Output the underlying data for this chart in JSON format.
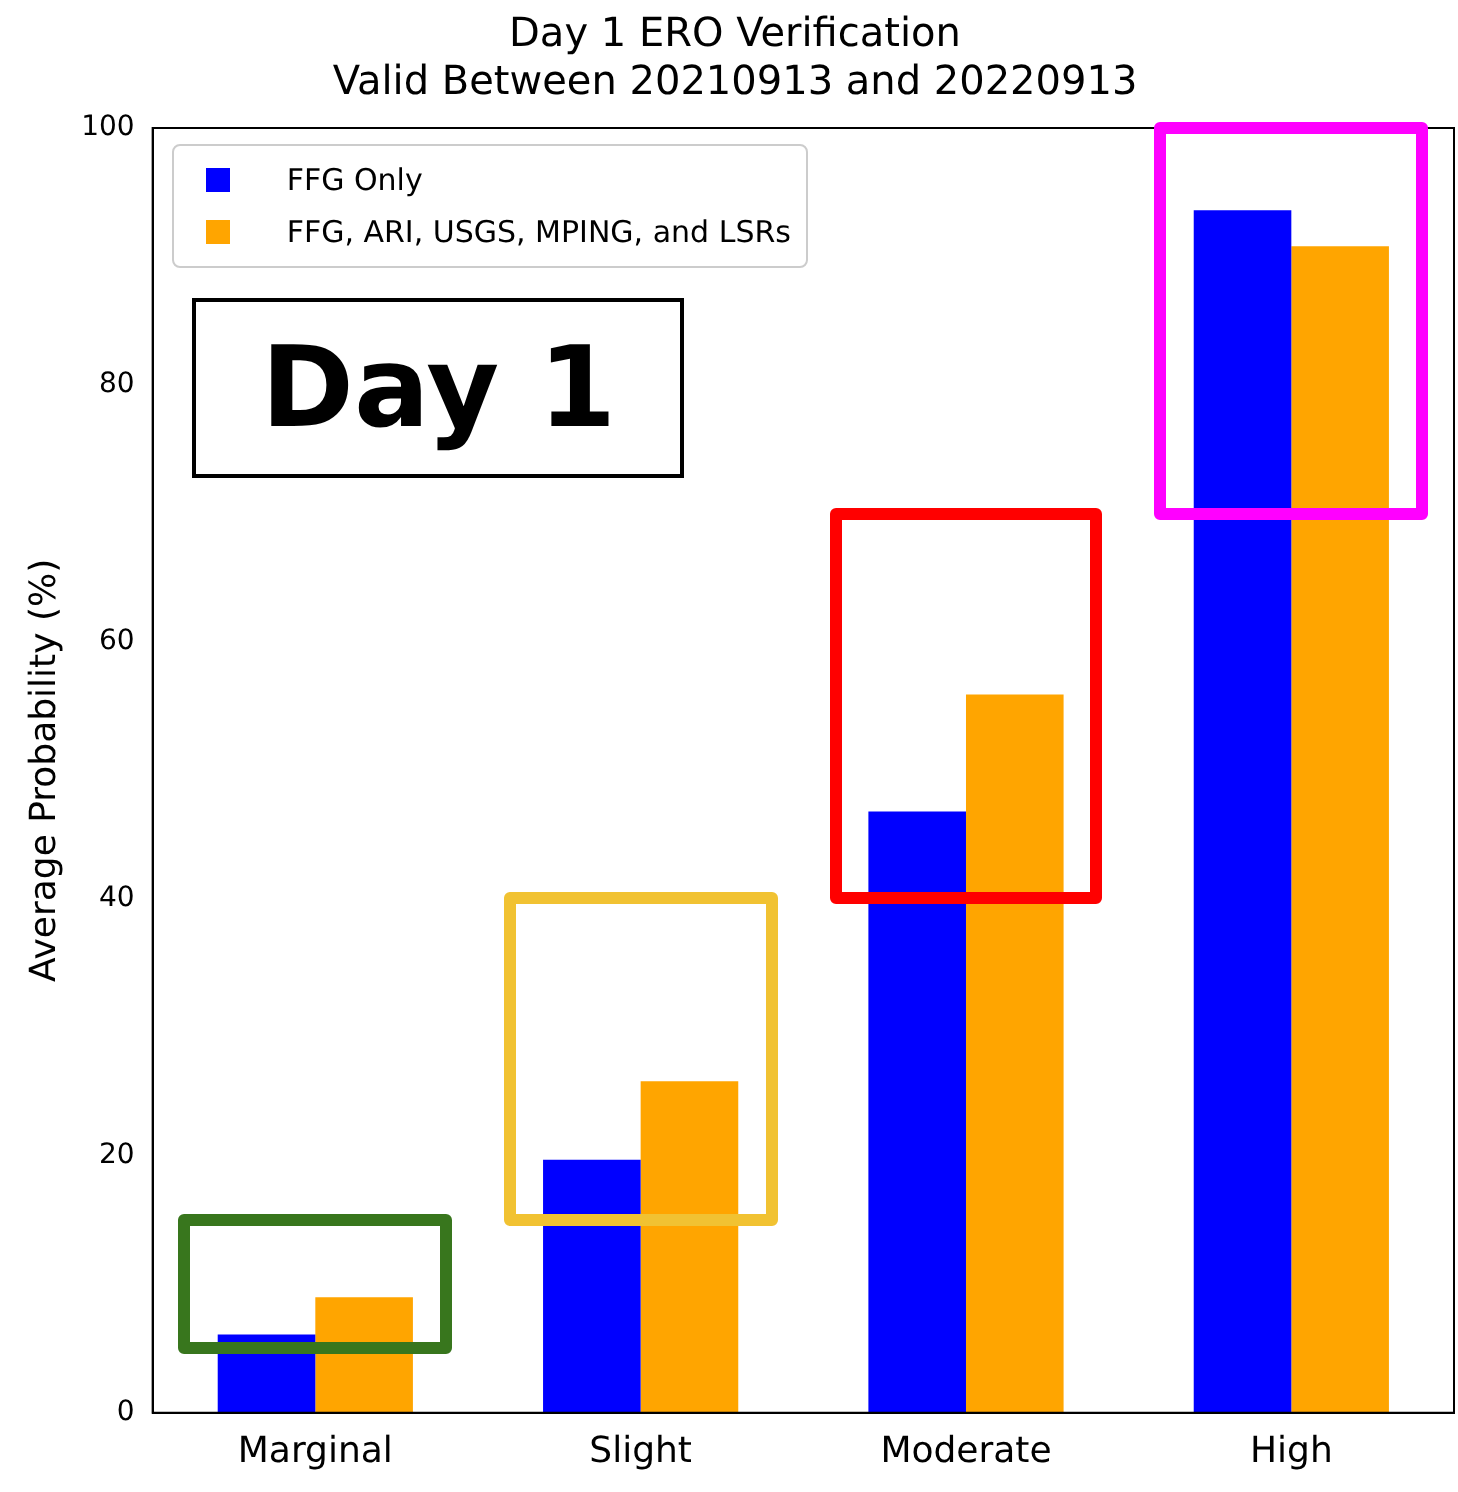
{
  "chart_data": {
    "type": "bar",
    "title": "Day 1 ERO Verification",
    "subtitle": "Valid Between 20210913 and 20220913",
    "ylabel": "Average Probability (%)",
    "categories": [
      "Marginal",
      "Slight",
      "Moderate",
      "High"
    ],
    "series": [
      {
        "name": "FFG Only",
        "color": "#0000ff",
        "values": [
          6.1,
          19.7,
          46.8,
          93.6
        ]
      },
      {
        "name": "FFG, ARI, USGS, MPING, and LSRs",
        "color": "#ffa500",
        "values": [
          9.0,
          25.8,
          55.9,
          90.8
        ]
      }
    ],
    "ylim": [
      0,
      100
    ],
    "yticks": [
      0,
      20,
      40,
      60,
      80,
      100
    ],
    "grid": false,
    "legend": "top left",
    "annotations": [
      "Day 1"
    ]
  }
}
